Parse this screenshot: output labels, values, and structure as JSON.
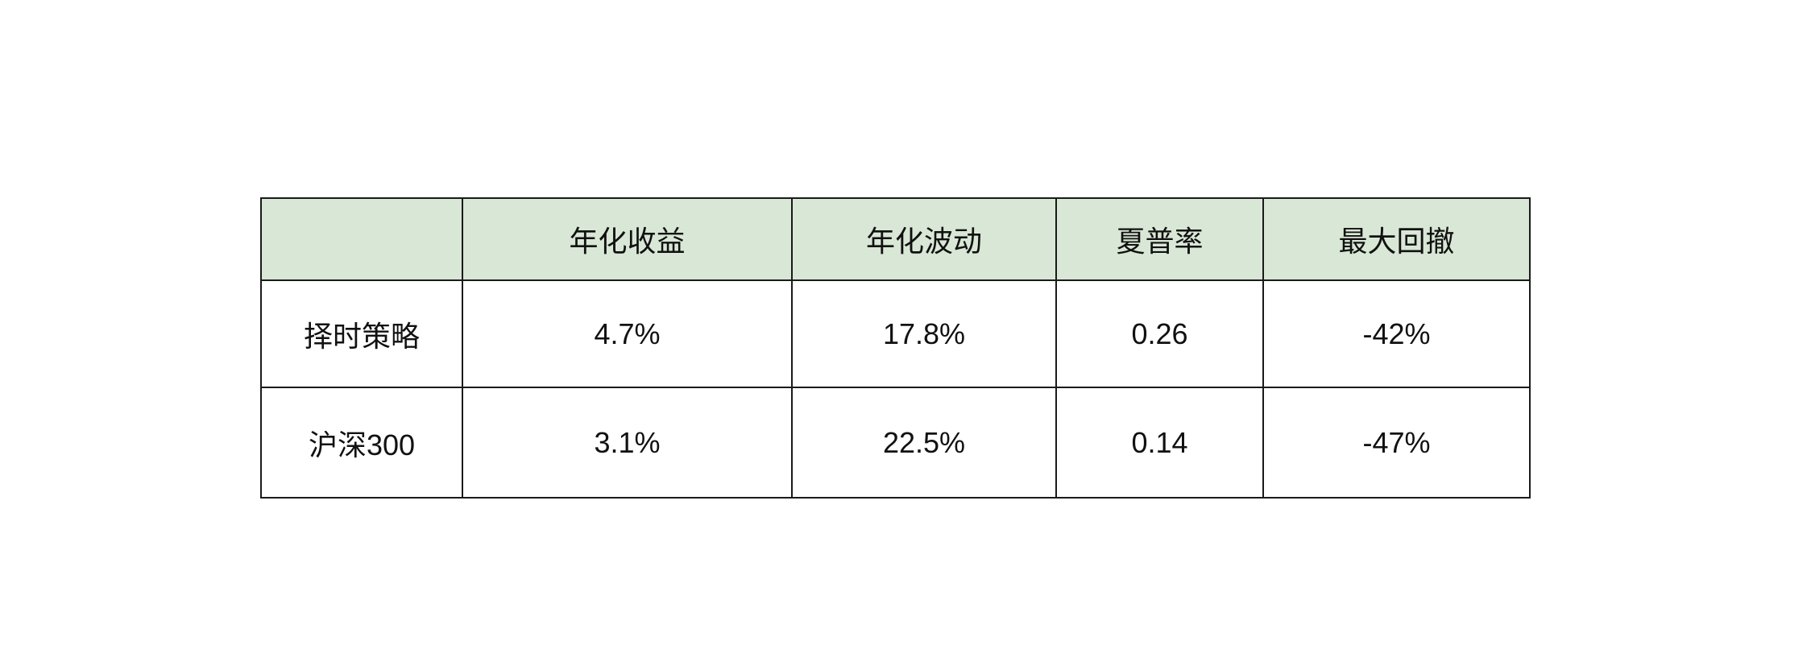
{
  "table": {
    "header_bg": "#d9e7d6",
    "columns": [
      "",
      "年化收益",
      "年化波动",
      "夏普率",
      "最大回撤"
    ],
    "rows": [
      {
        "label": "择时策略",
        "cells": [
          "4.7%",
          "17.8%",
          "0.26",
          "-42%"
        ]
      },
      {
        "label": "沪深300",
        "cells": [
          "3.1%",
          "22.5%",
          "0.14",
          "-47%"
        ]
      }
    ]
  }
}
